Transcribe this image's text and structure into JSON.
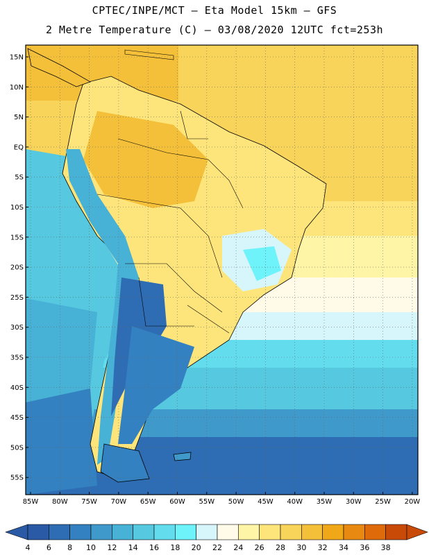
{
  "title_line1": "CPTEC/INPE/MCT –  Eta Model 15km – GFS",
  "title_line2": "2 Metre Temperature (C) – 03/08/2020 12UTC fct=253h",
  "lat_labels": [
    "15N",
    "10N",
    "5N",
    "EQ",
    "5S",
    "10S",
    "15S",
    "20S",
    "25S",
    "30S",
    "35S",
    "40S",
    "45S",
    "50S",
    "55S"
  ],
  "lon_labels": [
    "85W",
    "80W",
    "75W",
    "70W",
    "65W",
    "60W",
    "55W",
    "50W",
    "45W",
    "40W",
    "35W",
    "30W",
    "25W",
    "20W"
  ],
  "colorbar": {
    "labels": [
      "4",
      "6",
      "8",
      "10",
      "12",
      "14",
      "16",
      "18",
      "20",
      "22",
      "24",
      "26",
      "28",
      "30",
      "32",
      "34",
      "36",
      "38"
    ],
    "colors": [
      "#2a5aa5",
      "#2e6cb4",
      "#3381c0",
      "#3f9acb",
      "#48b1d6",
      "#56c8df",
      "#63dced",
      "#6ff3fb",
      "#d6f6fb",
      "#fffbe8",
      "#fff5a6",
      "#fde57b",
      "#f9d45b",
      "#f4c03a",
      "#f0a818",
      "#e88a12",
      "#de6a0a",
      "#c94a06"
    ]
  }
}
